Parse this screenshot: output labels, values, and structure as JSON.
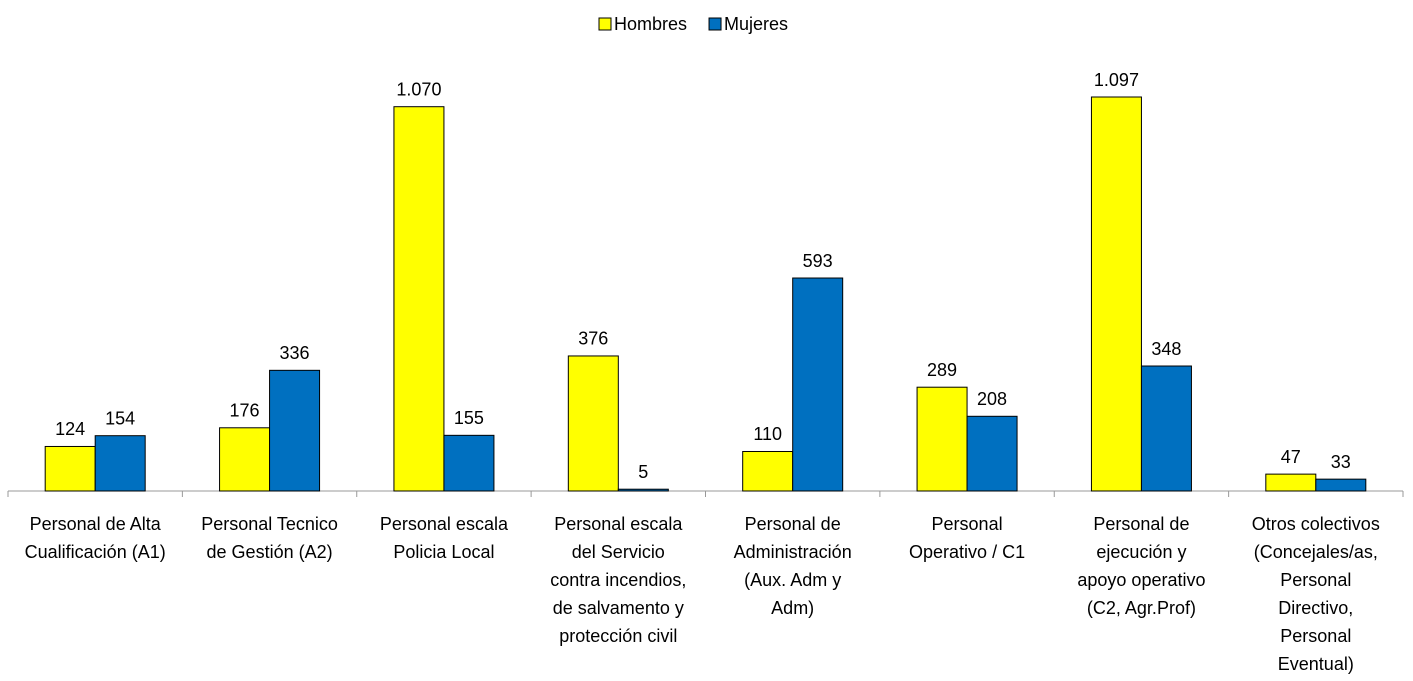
{
  "chart_data": {
    "type": "bar",
    "categories": [
      [
        "Personal de Alta",
        "Cualificación (A1)"
      ],
      [
        "Personal Tecnico",
        "de Gestión (A2)"
      ],
      [
        "Personal escala",
        "Policia Local"
      ],
      [
        "Personal escala",
        "del Servicio",
        "contra incendios,",
        "de salvamento y",
        "protección civil"
      ],
      [
        "Personal de",
        "Administración",
        "(Aux. Adm y",
        "Adm)"
      ],
      [
        "Personal",
        "Operativo / C1"
      ],
      [
        "Personal de",
        "ejecución y",
        "apoyo operativo",
        "(C2, Agr.Prof)"
      ],
      [
        "Otros colectivos",
        "(Concejales/as,",
        "Personal",
        "Directivo,",
        "Personal",
        "Eventual)"
      ]
    ],
    "series": [
      {
        "name": "Hombres",
        "color": "#ffff00",
        "values": [
          124,
          176,
          1070,
          376,
          110,
          289,
          1097,
          47
        ],
        "value_labels": [
          "124",
          "176",
          "1.070",
          "376",
          "110",
          "289",
          "1.097",
          "47"
        ]
      },
      {
        "name": "Mujeres",
        "color": "#0070c0",
        "values": [
          154,
          336,
          155,
          5,
          593,
          208,
          348,
          33
        ],
        "value_labels": [
          "154",
          "336",
          "155",
          "5",
          "593",
          "208",
          "348",
          "33"
        ]
      }
    ],
    "legend": "top"
  }
}
